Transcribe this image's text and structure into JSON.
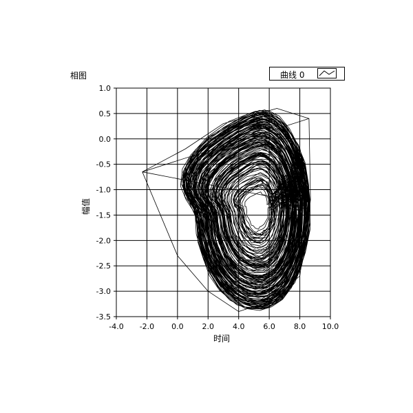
{
  "chart_data": {
    "type": "line",
    "title": "相图",
    "xlabel": "时间",
    "ylabel": "幅值",
    "xlim": [
      -4.0,
      10.0
    ],
    "ylim": [
      -3.5,
      1.0
    ],
    "x_ticks": [
      "-4.0",
      "-2.0",
      "0.0",
      "2.0",
      "4.0",
      "6.0",
      "8.0",
      "10.0"
    ],
    "y_ticks": [
      "1.0",
      "0.5",
      "0.0",
      "-0.5",
      "-1.0",
      "-1.5",
      "-2.0",
      "-2.5",
      "-3.0",
      "-3.5"
    ],
    "x_tick_values": [
      -4,
      -2,
      0,
      2,
      4,
      6,
      8,
      10
    ],
    "y_tick_values": [
      1.0,
      0.5,
      0.0,
      -0.5,
      -1.0,
      -1.5,
      -2.0,
      -2.5,
      -3.0,
      -3.5
    ],
    "grid": true,
    "legend_position": "top-right",
    "series": [
      {
        "name": "曲线 0",
        "color": "#000000",
        "x_range": [
          -2.3,
          8.7
        ],
        "y_range": [
          -3.4,
          0.6
        ],
        "attractor_center": [
          5.3,
          -1.4
        ],
        "description_points": [
          [
            -2.3,
            -0.65
          ],
          [
            8.6,
            0.4
          ],
          [
            8.7,
            -1.2
          ],
          [
            8.0,
            -2.7
          ],
          [
            6.0,
            -3.2
          ],
          [
            4.0,
            -3.4
          ],
          [
            2.0,
            -3.0
          ],
          [
            0.0,
            -2.3
          ],
          [
            -2.3,
            -0.65
          ],
          [
            0.5,
            -0.2
          ],
          [
            3.0,
            0.3
          ],
          [
            6.5,
            0.6
          ],
          [
            8.6,
            0.4
          ]
        ]
      }
    ]
  }
}
